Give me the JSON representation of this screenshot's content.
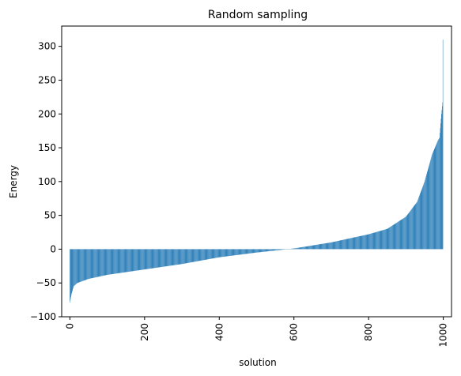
{
  "chart_data": {
    "type": "bar",
    "title": "Random sampling",
    "xlabel": "solution",
    "ylabel": "Energy",
    "xlim": [
      -22,
      1022
    ],
    "ylim": [
      -100,
      330
    ],
    "xticks": [
      0,
      200,
      400,
      600,
      800,
      1000
    ],
    "yticks": [
      -100,
      -50,
      0,
      50,
      100,
      150,
      200,
      250,
      300
    ],
    "x_tick_rotation": 90,
    "bar_color": "#1f77b4",
    "grid": false,
    "n_points": 1000,
    "sorted_profile": {
      "x": [
        0,
        5,
        10,
        20,
        50,
        100,
        200,
        300,
        400,
        500,
        600,
        700,
        800,
        850,
        900,
        930,
        950,
        970,
        985,
        990,
        995,
        998,
        999
      ],
      "y": [
        -79,
        -65,
        -55,
        -50,
        -44,
        -38,
        -30,
        -22,
        -12,
        -5,
        1,
        10,
        22,
        30,
        48,
        70,
        100,
        140,
        160,
        165,
        200,
        217,
        310
      ]
    }
  }
}
